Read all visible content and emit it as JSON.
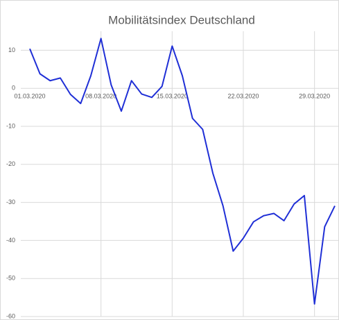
{
  "chart_data": {
    "type": "line",
    "title": "Mobilitätsindex Deutschland",
    "categories": [
      "01.03.2020",
      null,
      null,
      null,
      null,
      null,
      null,
      "08.03.2020",
      null,
      null,
      null,
      null,
      null,
      null,
      "15.03.2020",
      null,
      null,
      null,
      null,
      null,
      null,
      "22.03.2020",
      null,
      null,
      null,
      null,
      null,
      null,
      "29.03.2020",
      null,
      null
    ],
    "series": [
      {
        "name": "Mobilitätsindex",
        "color": "#1f2fd6",
        "values": [
          10.4,
          3.8,
          2,
          2.7,
          -1.6,
          -4,
          3.3,
          13.1,
          0.9,
          -6,
          2,
          -1.5,
          -2.4,
          0.5,
          11.1,
          3.3,
          -7.9,
          -10.8,
          -22.3,
          -30.9,
          -42.8,
          -39.4,
          -35.1,
          -33.5,
          -32.9,
          -34.8,
          -30.4,
          -28.2,
          -56.7,
          -36.4,
          -30.9
        ]
      }
    ],
    "ylim": [
      -60,
      15
    ],
    "yticks": [
      -60,
      -50,
      -40,
      -30,
      -20,
      -10,
      0,
      10
    ],
    "grid": true
  }
}
